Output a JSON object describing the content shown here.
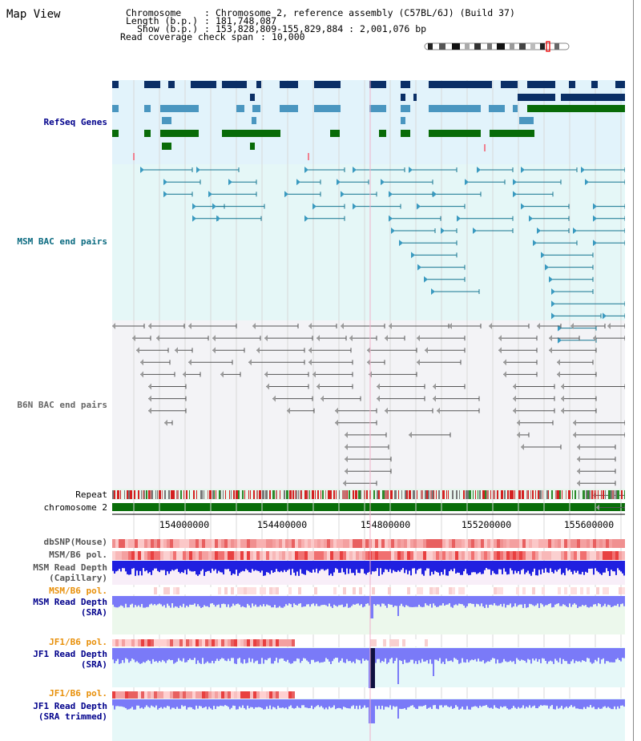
{
  "view": {
    "title": "Map View",
    "header": {
      "chromosome_key": "Chromosome",
      "chromosome_value": "Chromosome 2, reference assembly (C57BL/6J) (Build 37)",
      "length_key": "Length (b.p.)",
      "length_value": "181,748,087",
      "show_key": "Show (b.p.)",
      "show_value": "153,828,809-155,829,884 : 2,001,076 bp",
      "coverage_key": "Read coverage check span",
      "coverage_value": "10,000"
    }
  },
  "tracks": {
    "refseq": "RefSeq Genes",
    "msm_bac": "MSM BAC end pairs",
    "b6n_bac": "B6N BAC end pairs",
    "repeat": "Repeat",
    "chromosome": "chromosome 2",
    "dbsnp": "dbSNP(Mouse)",
    "msm_b6_pol_1": "MSM/B6 pol.",
    "msm_depth_cap_1": "MSM Read Depth",
    "msm_depth_cap_2": "(Capillary)",
    "msm_b6_pol_2": "MSM/B6 pol.",
    "msm_depth_sra_1": "MSM Read Depth",
    "msm_depth_sra_2": "(SRA)",
    "jf1_b6_pol_1": "JF1/B6 pol.",
    "jf1_depth_sra_1": "JF1 Read Depth",
    "jf1_depth_sra_2": "(SRA)",
    "jf1_b6_pol_2": "JF1/B6 pol.",
    "jf1_depth_trim_1": "JF1 Read Depth",
    "jf1_depth_trim_2": "(SRA trimmed)"
  },
  "ruler": {
    "ticks": [
      "154000000",
      "154400000",
      "154800000",
      "155200000",
      "155600000"
    ]
  },
  "colors": {
    "refseq_bg": "#e2f3fb",
    "msm_bg": "#e5f7f7",
    "b6n_bg": "#f3f3f6",
    "gene_dark": "#0b2f66",
    "gene_mid": "#4a96c0",
    "gene_green": "#086b08",
    "msm_line": "#157590",
    "b6n_line": "#666666",
    "chromosome": "#0a6e0a",
    "depth_blue": "#2020e0",
    "depth_lav": "#7a7af8",
    "label_blue": "#00008b",
    "label_teal": "#0a6a80",
    "label_orange": "#e8900a"
  }
}
